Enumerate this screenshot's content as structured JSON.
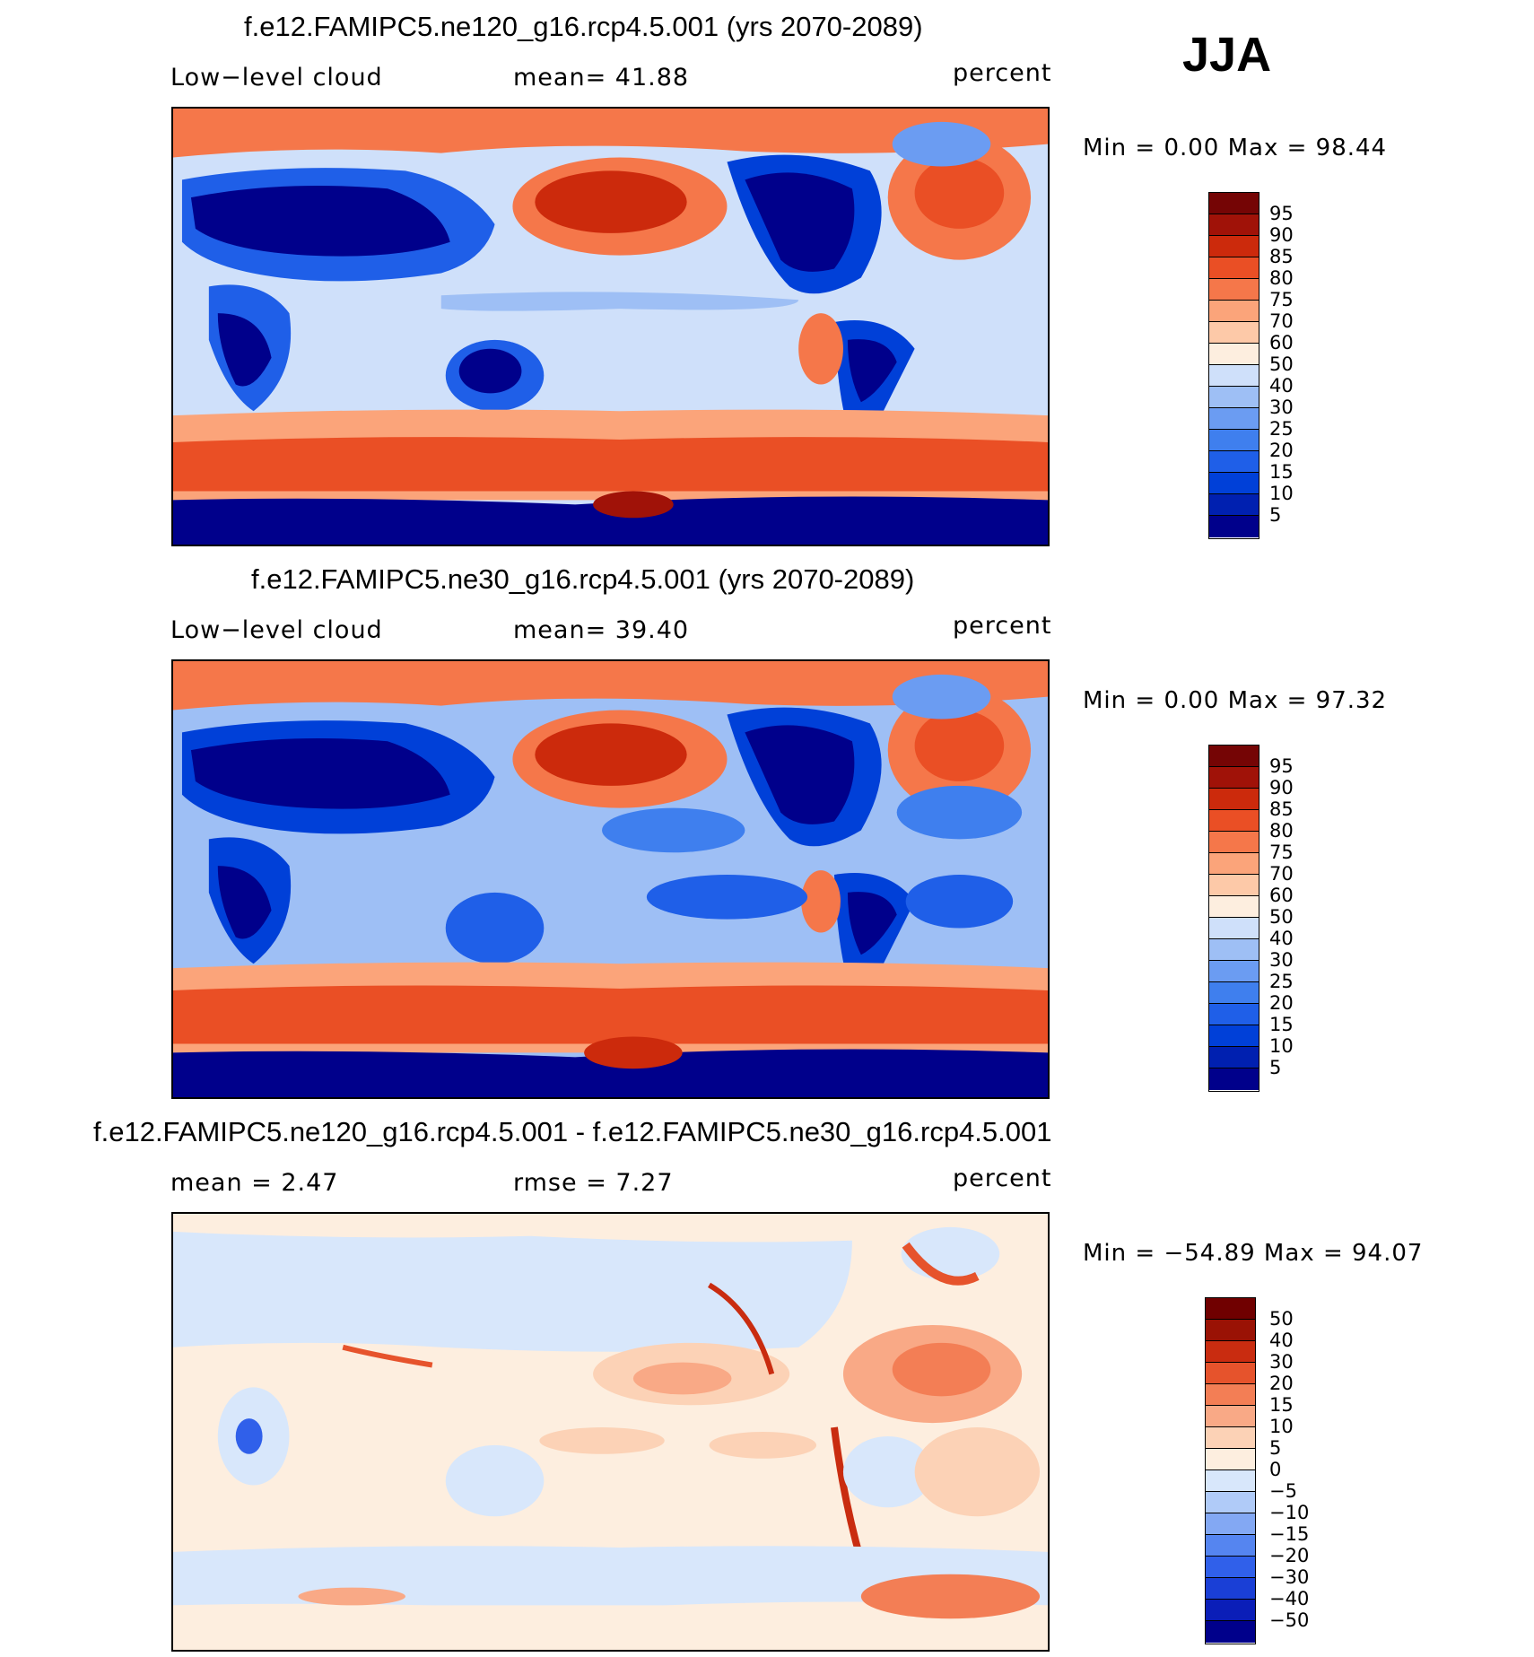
{
  "season": "JJA",
  "colors": {
    "abs_levels": [
      "#00008b",
      "#0020b0",
      "#0040d8",
      "#1f5fe8",
      "#3f7fee",
      "#6b9cf2",
      "#9ebff5",
      "#cfe0fa",
      "#fdeedf",
      "#fdc9a8",
      "#fba47a",
      "#f5774a",
      "#ea4f25",
      "#cc2a0c",
      "#a01208",
      "#750505"
    ],
    "diff_levels": [
      "#00008b",
      "#0a1eb8",
      "#1a3fd6",
      "#3060ea",
      "#5585f0",
      "#83a8f3",
      "#b0cbf8",
      "#d8e7fb",
      "#fdeedf",
      "#fcd2b6",
      "#f9a986",
      "#f37e55",
      "#e6532c",
      "#c92c10",
      "#9a1205",
      "#700000"
    ],
    "land_line": "#000000"
  },
  "panels": [
    {
      "title": "f.e12.FAMIPC5.ne120_g16.rcp4.5.001 (yrs 2070-2089)",
      "left_label": "Low−level cloud",
      "mid_label": "mean=   41.88",
      "units": "percent",
      "min_text": "Min  =     0.00  Max  =    98.44",
      "colorbar_labels": [
        "95",
        "90",
        "85",
        "80",
        "75",
        "70",
        "60",
        "50",
        "40",
        "30",
        "25",
        "20",
        "15",
        "10",
        "5"
      ]
    },
    {
      "title": "f.e12.FAMIPC5.ne30_g16.rcp4.5.001 (yrs 2070-2089)",
      "left_label": "Low−level cloud",
      "mid_label": "mean=   39.40",
      "units": "percent",
      "min_text": "Min  =     0.00  Max  =    97.32",
      "colorbar_labels": [
        "95",
        "90",
        "85",
        "80",
        "75",
        "70",
        "60",
        "50",
        "40",
        "30",
        "25",
        "20",
        "15",
        "10",
        "5"
      ]
    },
    {
      "title": "f.e12.FAMIPC5.ne120_g16.rcp4.5.001 - f.e12.FAMIPC5.ne30_g16.rcp4.5.001",
      "left_label": "mean  =     2.47",
      "mid_label": "rmse  =     7.27",
      "units": "percent",
      "min_text": "Min  =  −54.89  Max  =    94.07",
      "colorbar_labels": [
        "50",
        "40",
        "30",
        "20",
        "15",
        "10",
        "5",
        "0",
        "−5",
        "−10",
        "−15",
        "−20",
        "−30",
        "−40",
        "−50"
      ]
    }
  ]
}
